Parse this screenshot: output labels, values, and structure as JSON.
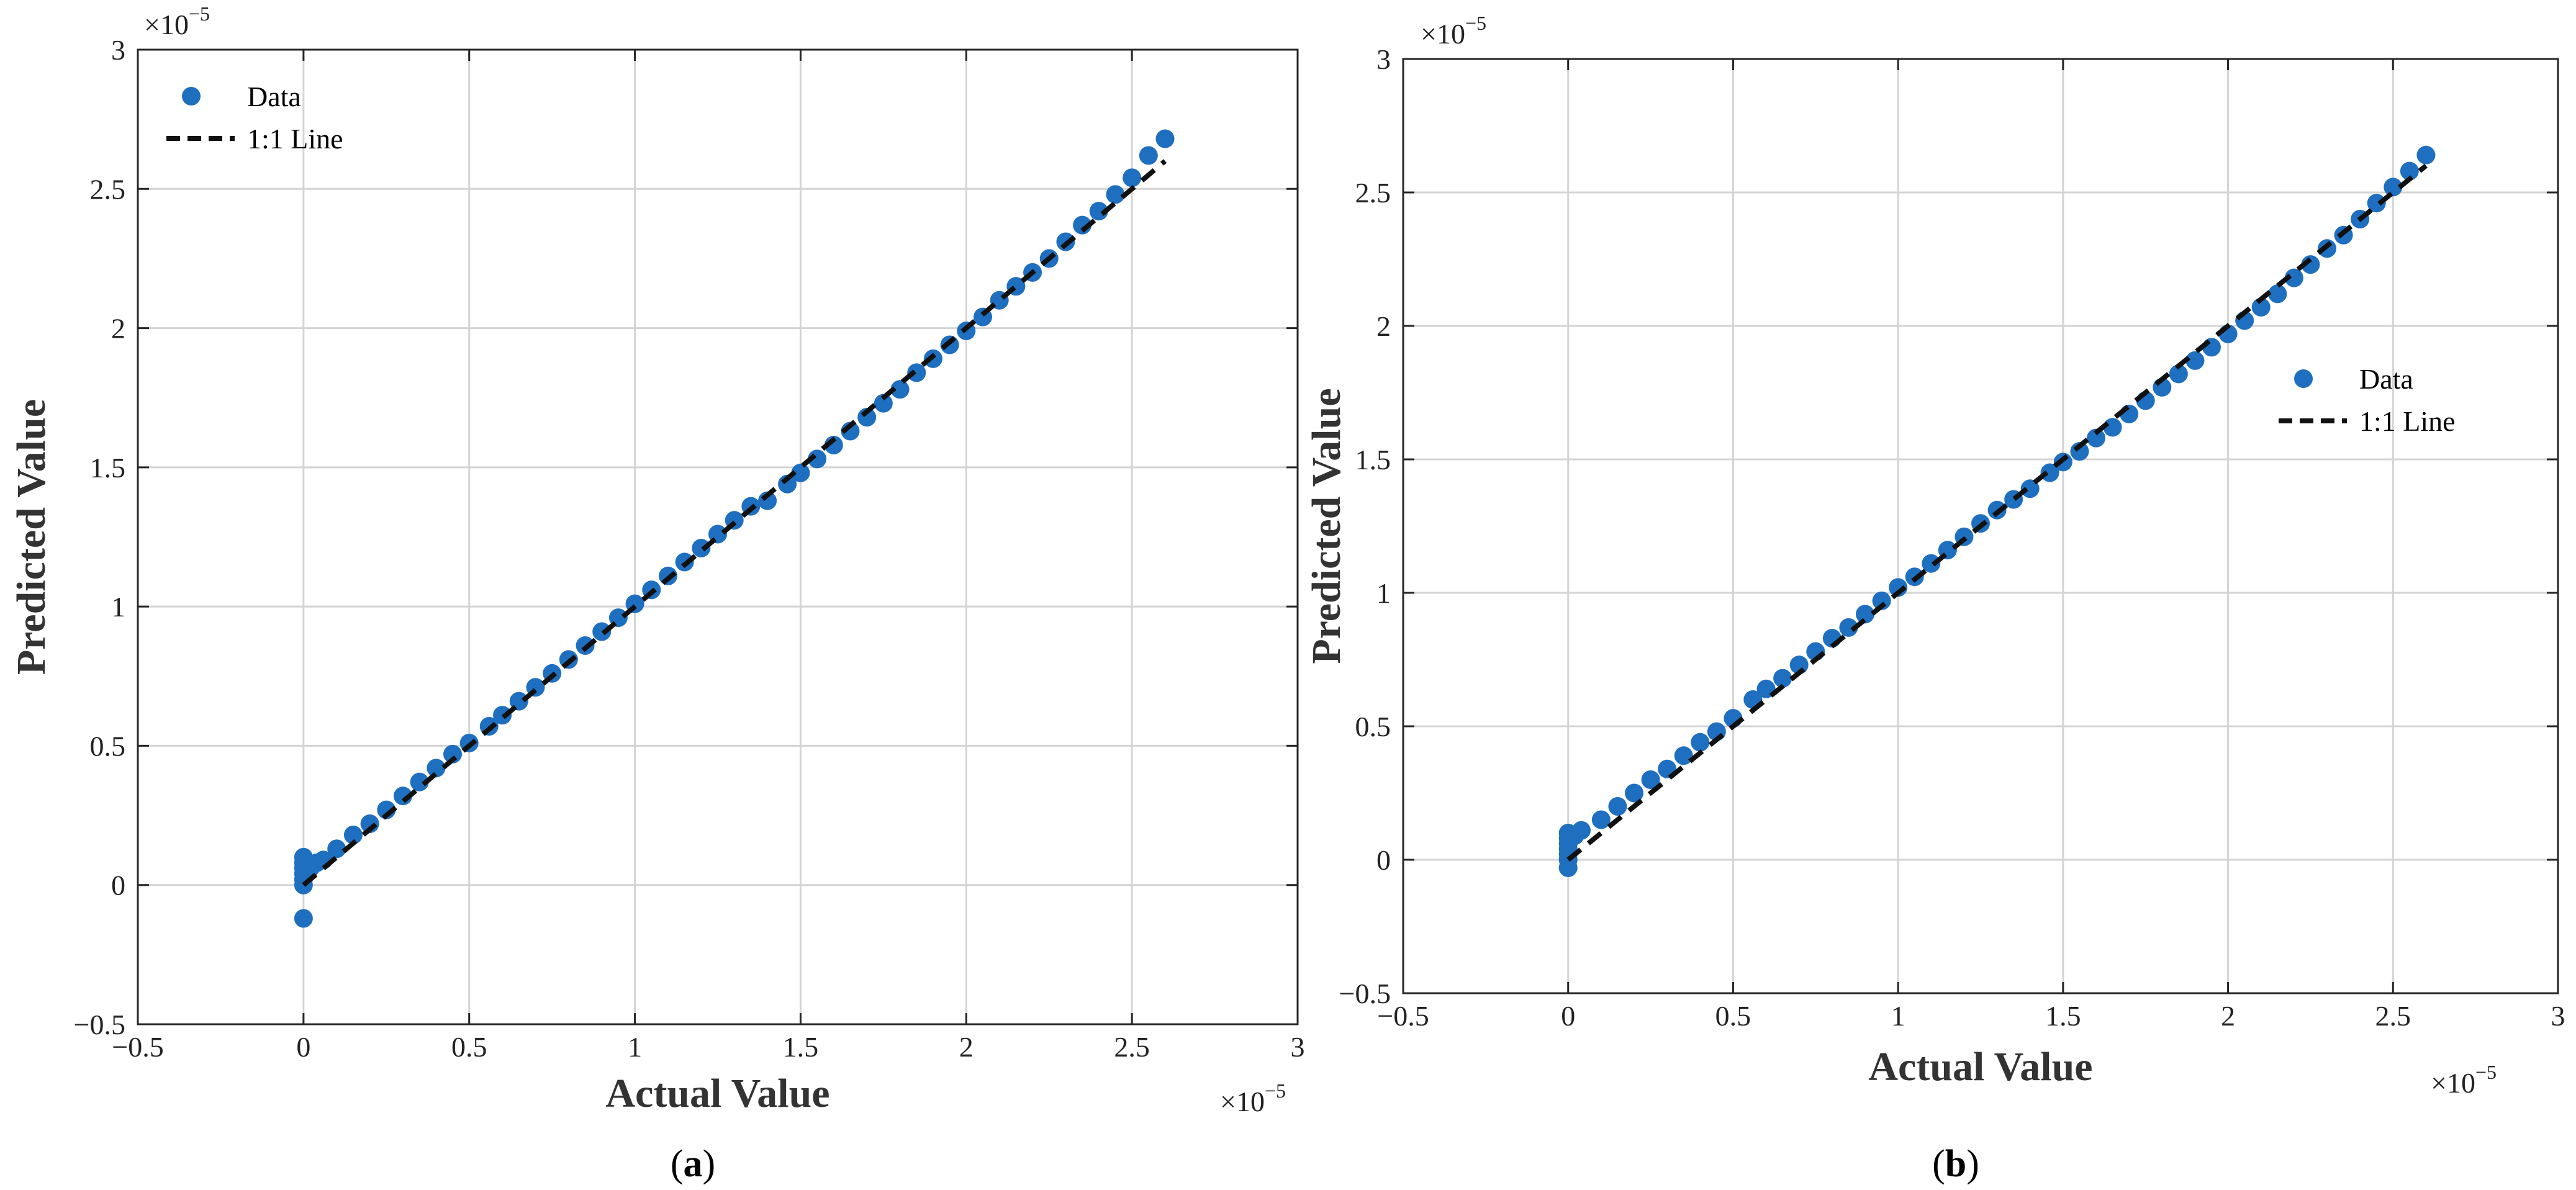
{
  "chart_data": [
    {
      "type": "scatter",
      "panel_label": "a",
      "xlabel": "Actual Value",
      "ylabel": "Predicted Value",
      "x_multiplier": "×10",
      "x_multiplier_exp": "−5",
      "y_multiplier": "×10",
      "y_multiplier_exp": "−5",
      "xlim": [
        -0.5,
        3
      ],
      "ylim": [
        -0.5,
        3
      ],
      "x_ticks": [
        -0.5,
        0,
        0.5,
        1,
        1.5,
        2,
        2.5,
        3
      ],
      "y_ticks": [
        -0.5,
        0,
        0.5,
        1,
        1.5,
        2,
        2.5,
        3
      ],
      "x_tick_labels": [
        "−0.5",
        "0",
        "0.5",
        "1",
        "1.5",
        "2",
        "2.5",
        "3"
      ],
      "y_tick_labels": [
        "−0.5",
        "0",
        "0.5",
        "1",
        "1.5",
        "2",
        "2.5",
        "3"
      ],
      "grid": true,
      "legend": {
        "position": "top-left",
        "entries": [
          "Data",
          "1:1 Line"
        ]
      },
      "reference_line": {
        "x": [
          0,
          2.6
        ],
        "y": [
          0,
          2.6
        ]
      },
      "series": [
        {
          "name": "Data",
          "color": "#1f6fc0",
          "points": [
            [
              0,
              -0.12
            ],
            [
              0,
              0.0
            ],
            [
              0,
              0.02
            ],
            [
              0,
              0.04
            ],
            [
              0,
              0.06
            ],
            [
              0,
              0.08
            ],
            [
              0,
              0.1
            ],
            [
              0.02,
              0.06
            ],
            [
              0.04,
              0.08
            ],
            [
              0.06,
              0.09
            ],
            [
              0.1,
              0.13
            ],
            [
              0.15,
              0.18
            ],
            [
              0.2,
              0.22
            ],
            [
              0.25,
              0.27
            ],
            [
              0.3,
              0.32
            ],
            [
              0.35,
              0.37
            ],
            [
              0.4,
              0.42
            ],
            [
              0.45,
              0.47
            ],
            [
              0.5,
              0.51
            ],
            [
              0.56,
              0.57
            ],
            [
              0.6,
              0.61
            ],
            [
              0.65,
              0.66
            ],
            [
              0.7,
              0.71
            ],
            [
              0.75,
              0.76
            ],
            [
              0.8,
              0.81
            ],
            [
              0.85,
              0.86
            ],
            [
              0.9,
              0.91
            ],
            [
              0.95,
              0.96
            ],
            [
              1.0,
              1.01
            ],
            [
              1.05,
              1.06
            ],
            [
              1.1,
              1.11
            ],
            [
              1.15,
              1.16
            ],
            [
              1.2,
              1.21
            ],
            [
              1.25,
              1.26
            ],
            [
              1.3,
              1.31
            ],
            [
              1.35,
              1.36
            ],
            [
              1.4,
              1.38
            ],
            [
              1.46,
              1.44
            ],
            [
              1.5,
              1.48
            ],
            [
              1.55,
              1.53
            ],
            [
              1.6,
              1.58
            ],
            [
              1.65,
              1.63
            ],
            [
              1.7,
              1.68
            ],
            [
              1.75,
              1.73
            ],
            [
              1.8,
              1.78
            ],
            [
              1.85,
              1.84
            ],
            [
              1.9,
              1.89
            ],
            [
              1.95,
              1.94
            ],
            [
              2.0,
              1.99
            ],
            [
              2.05,
              2.04
            ],
            [
              2.1,
              2.1
            ],
            [
              2.15,
              2.15
            ],
            [
              2.2,
              2.2
            ],
            [
              2.25,
              2.25
            ],
            [
              2.3,
              2.31
            ],
            [
              2.35,
              2.37
            ],
            [
              2.4,
              2.42
            ],
            [
              2.45,
              2.48
            ],
            [
              2.5,
              2.54
            ],
            [
              2.55,
              2.62
            ],
            [
              2.6,
              2.68
            ]
          ]
        }
      ]
    },
    {
      "type": "scatter",
      "panel_label": "b",
      "xlabel": "Actual Value",
      "ylabel": "Predicted Value",
      "x_multiplier": "×10",
      "x_multiplier_exp": "−5",
      "y_multiplier": "×10",
      "y_multiplier_exp": "−5",
      "xlim": [
        -0.5,
        3
      ],
      "ylim": [
        -0.5,
        3
      ],
      "x_ticks": [
        -0.5,
        0,
        0.5,
        1,
        1.5,
        2,
        2.5,
        3
      ],
      "y_ticks": [
        -0.5,
        0,
        0.5,
        1,
        1.5,
        2,
        2.5,
        3
      ],
      "x_tick_labels": [
        "−0.5",
        "0",
        "0.5",
        "1",
        "1.5",
        "2",
        "2.5",
        "3"
      ],
      "y_tick_labels": [
        "−0.5",
        "0",
        "0.5",
        "1",
        "1.5",
        "2",
        "2.5",
        "3"
      ],
      "grid": true,
      "legend": {
        "position": "right",
        "entries": [
          "Data",
          "1:1 Line"
        ]
      },
      "reference_line": {
        "x": [
          0,
          2.6
        ],
        "y": [
          0,
          2.6
        ]
      },
      "series": [
        {
          "name": "Data",
          "color": "#1f6fc0",
          "points": [
            [
              0,
              -0.03
            ],
            [
              0,
              0.0
            ],
            [
              0,
              0.02
            ],
            [
              0,
              0.04
            ],
            [
              0,
              0.06
            ],
            [
              0,
              0.08
            ],
            [
              0,
              0.1
            ],
            [
              0.02,
              0.09
            ],
            [
              0.04,
              0.11
            ],
            [
              0.1,
              0.15
            ],
            [
              0.15,
              0.2
            ],
            [
              0.2,
              0.25
            ],
            [
              0.25,
              0.3
            ],
            [
              0.3,
              0.34
            ],
            [
              0.35,
              0.39
            ],
            [
              0.4,
              0.44
            ],
            [
              0.45,
              0.48
            ],
            [
              0.5,
              0.53
            ],
            [
              0.56,
              0.6
            ],
            [
              0.6,
              0.64
            ],
            [
              0.65,
              0.68
            ],
            [
              0.7,
              0.73
            ],
            [
              0.75,
              0.78
            ],
            [
              0.8,
              0.83
            ],
            [
              0.85,
              0.87
            ],
            [
              0.9,
              0.92
            ],
            [
              0.95,
              0.97
            ],
            [
              1.0,
              1.02
            ],
            [
              1.05,
              1.06
            ],
            [
              1.1,
              1.11
            ],
            [
              1.15,
              1.16
            ],
            [
              1.2,
              1.21
            ],
            [
              1.25,
              1.26
            ],
            [
              1.3,
              1.31
            ],
            [
              1.35,
              1.35
            ],
            [
              1.4,
              1.39
            ],
            [
              1.46,
              1.45
            ],
            [
              1.5,
              1.49
            ],
            [
              1.55,
              1.53
            ],
            [
              1.6,
              1.58
            ],
            [
              1.65,
              1.62
            ],
            [
              1.7,
              1.67
            ],
            [
              1.75,
              1.72
            ],
            [
              1.8,
              1.77
            ],
            [
              1.85,
              1.82
            ],
            [
              1.9,
              1.87
            ],
            [
              1.95,
              1.92
            ],
            [
              2.0,
              1.97
            ],
            [
              2.05,
              2.02
            ],
            [
              2.1,
              2.07
            ],
            [
              2.15,
              2.12
            ],
            [
              2.2,
              2.18
            ],
            [
              2.25,
              2.23
            ],
            [
              2.3,
              2.29
            ],
            [
              2.35,
              2.34
            ],
            [
              2.4,
              2.4
            ],
            [
              2.45,
              2.46
            ],
            [
              2.5,
              2.52
            ],
            [
              2.55,
              2.58
            ],
            [
              2.6,
              2.64
            ]
          ]
        }
      ]
    }
  ]
}
